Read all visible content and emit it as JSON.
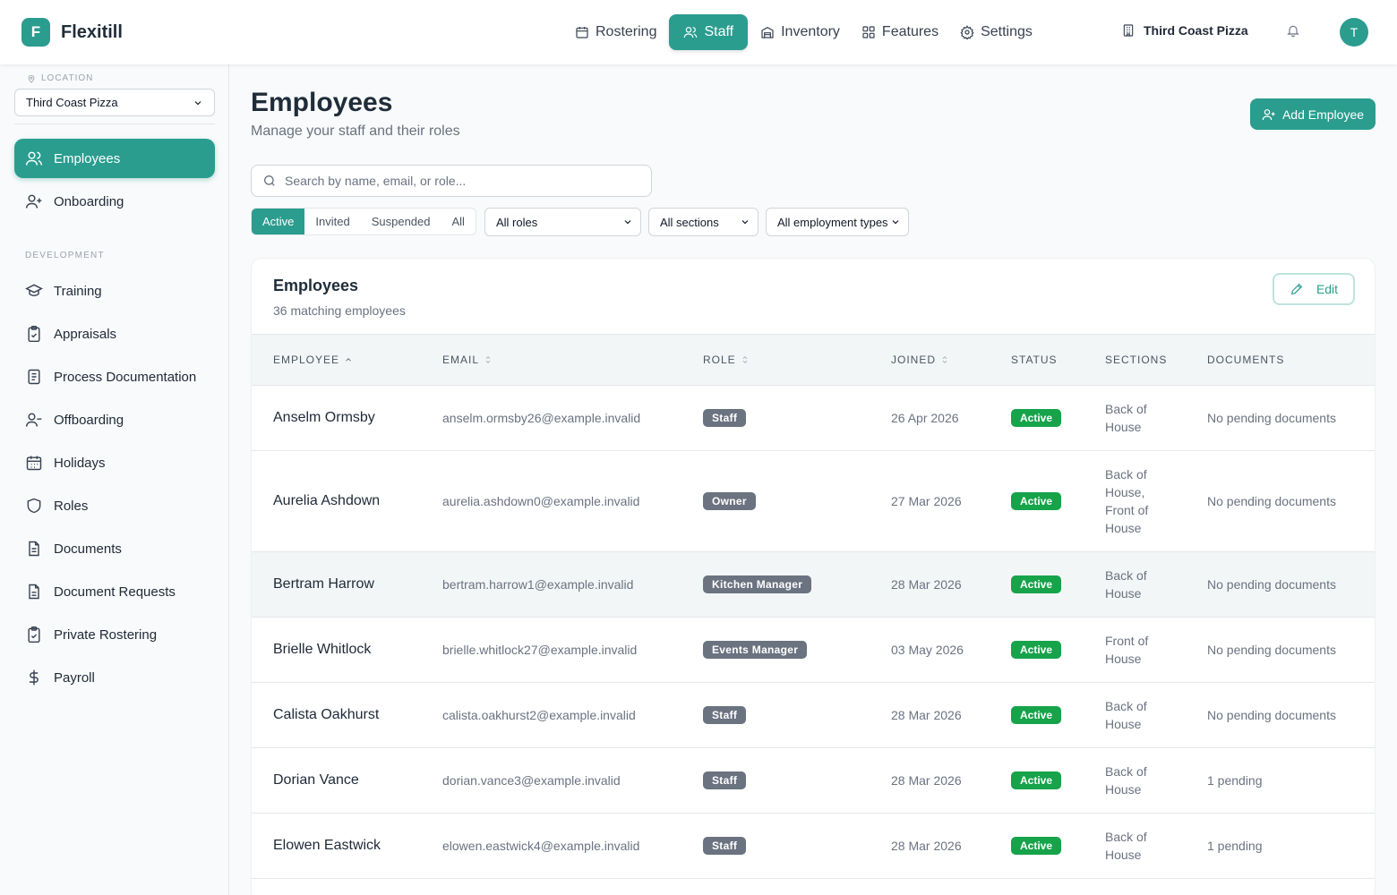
{
  "app": {
    "logo_letter": "F",
    "name": "Flexitill",
    "accent": "#2a9d8f"
  },
  "nav": [
    {
      "label": "Rostering",
      "icon": "calendar-icon",
      "active": false
    },
    {
      "label": "Staff",
      "icon": "users-icon",
      "active": true
    },
    {
      "label": "Inventory",
      "icon": "warehouse-icon",
      "active": false
    },
    {
      "label": "Features",
      "icon": "grid-icon",
      "active": false
    },
    {
      "label": "Settings",
      "icon": "gear-icon",
      "active": false
    }
  ],
  "org": {
    "name": "Third Coast Pizza"
  },
  "user": {
    "initial": "T"
  },
  "sidebar": {
    "location_label": "LOCATION",
    "location_value": "Third Coast Pizza",
    "section_label": "DEVELOPMENT",
    "top_items": [
      {
        "label": "Employees",
        "icon": "users-icon",
        "active": true
      },
      {
        "label": "Onboarding",
        "icon": "user-plus-icon",
        "active": false
      }
    ],
    "dev_items": [
      {
        "label": "Training",
        "icon": "graduation-cap-icon"
      },
      {
        "label": "Appraisals",
        "icon": "clipboard-check-icon"
      },
      {
        "label": "Process Documentation",
        "icon": "document-icon"
      },
      {
        "label": "Offboarding",
        "icon": "user-minus-icon"
      },
      {
        "label": "Holidays",
        "icon": "calendar-days-icon"
      },
      {
        "label": "Roles",
        "icon": "shield-icon"
      },
      {
        "label": "Documents",
        "icon": "file-text-icon"
      },
      {
        "label": "Document Requests",
        "icon": "file-request-icon"
      },
      {
        "label": "Private Rostering",
        "icon": "clipboard-icon"
      },
      {
        "label": "Payroll",
        "icon": "dollar-icon"
      }
    ]
  },
  "page": {
    "title": "Employees",
    "subtitle": "Manage your staff and their roles",
    "add_button": "Add Employee",
    "search_placeholder": "Search by name, email, or role..."
  },
  "filters": {
    "status_tabs": [
      "Active",
      "Invited",
      "Suspended",
      "All"
    ],
    "active_tab": "Active",
    "role": "All roles",
    "section": "All sections",
    "employment_type": "All employment types"
  },
  "table": {
    "title": "Employees",
    "count_text": "36 matching employees",
    "edit_label": "Edit",
    "columns": [
      "EMPLOYEE",
      "EMAIL",
      "ROLE",
      "JOINED",
      "STATUS",
      "SECTIONS",
      "DOCUMENTS"
    ],
    "rows": [
      {
        "name": "Anselm Ormsby",
        "email": "anselm.ormsby26@example.invalid",
        "role": "Staff",
        "joined": "26 Apr 2026",
        "status": "Active",
        "sections": [
          "Back of",
          "House"
        ],
        "documents": "No pending documents"
      },
      {
        "name": "Aurelia Ashdown",
        "email": "aurelia.ashdown0@example.invalid",
        "role": "Owner",
        "joined": "27 Mar 2026",
        "status": "Active",
        "sections": [
          "Back of",
          "House,",
          "Front of",
          "House"
        ],
        "documents": "No pending documents"
      },
      {
        "name": "Bertram Harrow",
        "email": "bertram.harrow1@example.invalid",
        "role": "Kitchen Manager",
        "joined": "28 Mar 2026",
        "status": "Active",
        "sections": [
          "Back of",
          "House"
        ],
        "documents": "No pending documents",
        "highlighted": true
      },
      {
        "name": "Brielle Whitlock",
        "email": "brielle.whitlock27@example.invalid",
        "role": "Events Manager",
        "joined": "03 May 2026",
        "status": "Active",
        "sections": [
          "Front of",
          "House"
        ],
        "documents": "No pending documents"
      },
      {
        "name": "Calista Oakhurst",
        "email": "calista.oakhurst2@example.invalid",
        "role": "Staff",
        "joined": "28 Mar 2026",
        "status": "Active",
        "sections": [
          "Back of",
          "House"
        ],
        "documents": "No pending documents"
      },
      {
        "name": "Dorian Vance",
        "email": "dorian.vance3@example.invalid",
        "role": "Staff",
        "joined": "28 Mar 2026",
        "status": "Active",
        "sections": [
          "Back of",
          "House"
        ],
        "documents": "1 pending"
      },
      {
        "name": "Elowen Eastwick",
        "email": "elowen.eastwick4@example.invalid",
        "role": "Staff",
        "joined": "28 Mar 2026",
        "status": "Active",
        "sections": [
          "Back of",
          "House"
        ],
        "documents": "1 pending"
      }
    ]
  }
}
